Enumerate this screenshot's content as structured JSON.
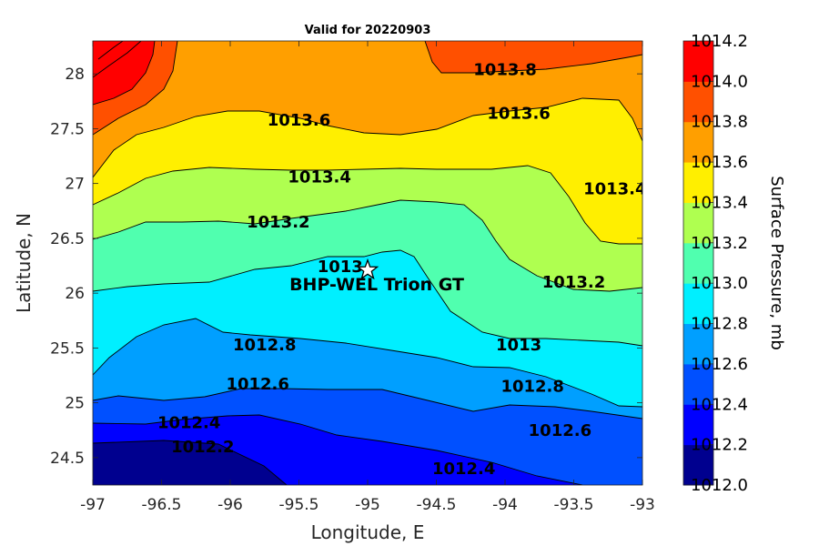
{
  "chart_data": {
    "type": "contour",
    "title": "Valid for 20220903",
    "xlabel": "Longitude, E",
    "ylabel": "Latitude, N",
    "xlim": [
      -97,
      -93
    ],
    "ylim": [
      24.25,
      28.3
    ],
    "xticks": [
      "-97",
      "-96.5",
      "-96",
      "-95.5",
      "-95",
      "-94.5",
      "-94",
      "-93.5",
      "-93"
    ],
    "yticks": [
      "24.5",
      "25",
      "25.5",
      "26",
      "26.5",
      "27",
      "27.5",
      "28"
    ],
    "colorbar": {
      "label": "Surface Pressure, mb",
      "range": [
        1012.0,
        1014.2
      ],
      "ticks": [
        "1012.0",
        "1012.2",
        "1012.4",
        "1012.6",
        "1012.8",
        "1013.0",
        "1013.2",
        "1013.4",
        "1013.6",
        "1013.8",
        "1014.0",
        "1014.2"
      ],
      "colors": [
        "#00008f",
        "#0000ff",
        "#0050ff",
        "#009fff",
        "#00efff",
        "#50ffaf",
        "#afff50",
        "#ffef00",
        "#ff9f00",
        "#ff5000",
        "#ff0000"
      ]
    },
    "contour_labels": [
      {
        "text": "1013.8",
        "lon": -94.0,
        "lat": 28.04
      },
      {
        "text": "1013.6",
        "lon": -95.5,
        "lat": 27.58
      },
      {
        "text": "1013.6",
        "lon": -93.9,
        "lat": 27.64
      },
      {
        "text": "1013.4",
        "lon": -95.35,
        "lat": 27.06
      },
      {
        "text": "1013.4",
        "lon": -93.2,
        "lat": 26.95
      },
      {
        "text": "1013.2",
        "lon": -95.65,
        "lat": 26.65
      },
      {
        "text": "1013.2",
        "lon": -93.5,
        "lat": 26.1
      },
      {
        "text": "1013",
        "lon": -95.2,
        "lat": 26.24
      },
      {
        "text": "1013",
        "lon": -93.9,
        "lat": 25.53
      },
      {
        "text": "1012.8",
        "lon": -95.75,
        "lat": 25.53
      },
      {
        "text": "1012.8",
        "lon": -93.8,
        "lat": 25.15
      },
      {
        "text": "1012.6",
        "lon": -95.8,
        "lat": 25.17
      },
      {
        "text": "1012.6",
        "lon": -93.6,
        "lat": 24.75
      },
      {
        "text": "1012.4",
        "lon": -96.3,
        "lat": 24.82
      },
      {
        "text": "1012.4",
        "lon": -94.3,
        "lat": 24.4
      },
      {
        "text": "1012.2",
        "lon": -96.2,
        "lat": 24.6
      }
    ],
    "marker": {
      "label": "BHP-WEL Trion GT",
      "lon": -95.0,
      "lat": 26.21,
      "symbol": "star"
    }
  }
}
